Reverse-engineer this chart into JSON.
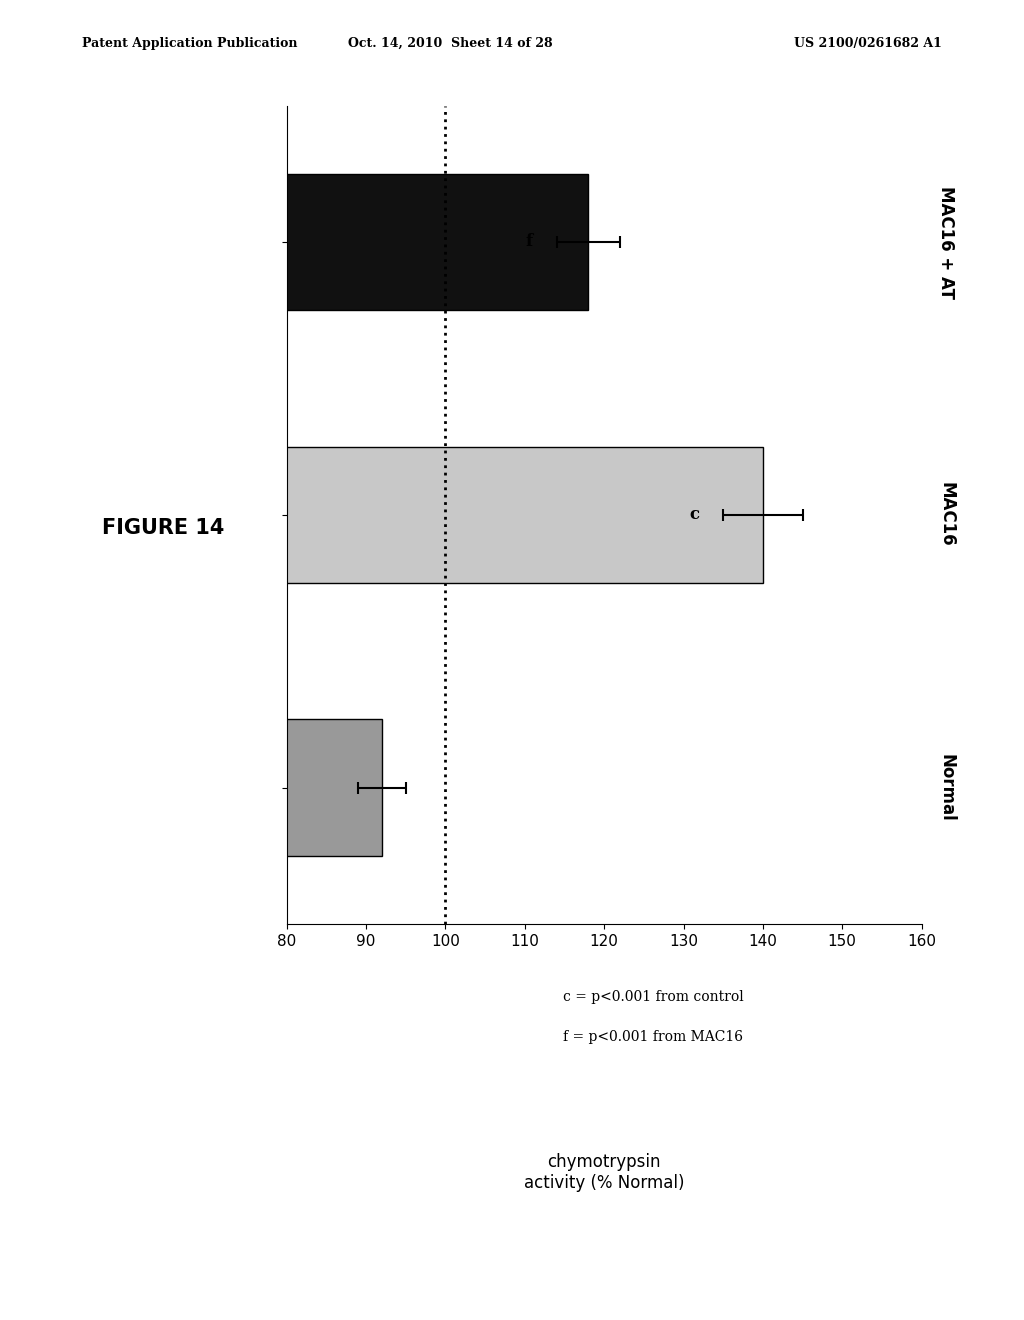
{
  "title": "FIGURE 14",
  "xlabel": "chymotrypsin\nactivity (% Normal)",
  "categories": [
    "Normal",
    "MAC16",
    "MAC16 + AT"
  ],
  "values": [
    92,
    140,
    118
  ],
  "errors_minus": [
    3,
    5,
    4
  ],
  "errors_plus": [
    3,
    5,
    4
  ],
  "bar_colors": [
    "#999999",
    "#c8c8c8",
    "#111111"
  ],
  "bar_edgecolors": [
    "#000000",
    "#000000",
    "#000000"
  ],
  "xlim": [
    80,
    160
  ],
  "xticks": [
    80,
    90,
    100,
    110,
    120,
    130,
    140,
    150,
    160
  ],
  "reference_line": 100,
  "annotation_c": "c",
  "annotation_f": "f",
  "footnote1": "c = p<0.001 from control",
  "footnote2": "f = p<0.001 from MAC16",
  "background_color": "#ffffff",
  "header_left": "Patent Application Publication",
  "header_mid": "Oct. 14, 2010  Sheet 14 of 28",
  "header_right": "US 2100/0261682 A1",
  "figure_label": "FIGURE 14"
}
